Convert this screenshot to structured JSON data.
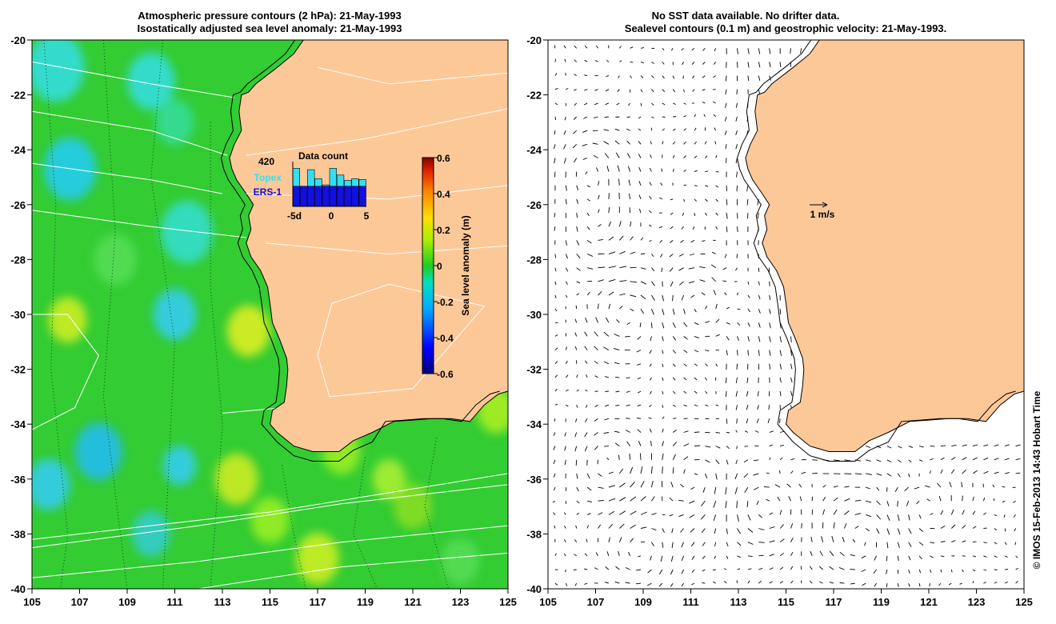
{
  "left_panel": {
    "title_line1": "Atmospheric pressure contours (2 hPa): 21-May-1993",
    "title_line2": "Isostatically adjusted sea level anomaly: 21-May-1993",
    "inset": {
      "count_label": "420",
      "title": "Data count",
      "series": [
        {
          "name": "Topex",
          "color": "#33e0f0"
        },
        {
          "name": "ERS-1",
          "color": "#1010e0"
        }
      ],
      "x_labels": [
        "-5d",
        "0",
        "5"
      ],
      "topex_counts": [
        0.85,
        0.45,
        0.82,
        0.62,
        0.48,
        0.85,
        0.7,
        0.58,
        0.62,
        0.6
      ],
      "ers_counts": [
        0.45,
        0.45,
        0.45,
        0.45,
        0.45,
        0.45,
        0.45,
        0.45,
        0.45,
        0.45
      ]
    },
    "colorbar": {
      "label": "Sea level anomaly (m)",
      "ticks": [
        "0.6",
        "0.4",
        "0.2",
        "0",
        "-0.2",
        "-0.4",
        "-0.6"
      ],
      "range": [
        -0.6,
        0.6
      ]
    }
  },
  "right_panel": {
    "title_line1": "No SST data available.  No drifter data.",
    "title_line2": "Sealevel contours (0.1 m) and geostrophic velocity: 21-May-1993.",
    "scale_label": "1 m/s"
  },
  "axes": {
    "lon_ticks": [
      "105",
      "107",
      "109",
      "111",
      "113",
      "115",
      "117",
      "119",
      "121",
      "123",
      "125"
    ],
    "lat_ticks": [
      "-20",
      "-22",
      "-24",
      "-26",
      "-28",
      "-30",
      "-32",
      "-34",
      "-36",
      "-38",
      "-40"
    ],
    "lon_range": [
      105,
      125
    ],
    "lat_range": [
      -40,
      -20
    ]
  },
  "colors": {
    "land": "#fdc898",
    "ocean_base": "#33cc33",
    "coast": "#000000"
  },
  "credit": "© IMOS 15-Feb-2013 14:43 Hobart Time"
}
